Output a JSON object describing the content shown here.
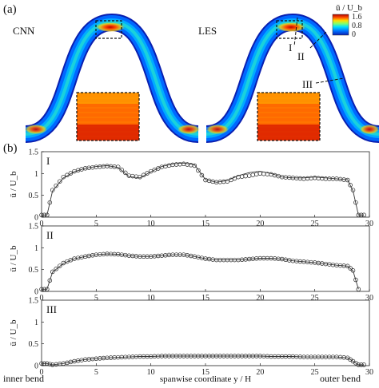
{
  "panel_a": {
    "label": "(a)",
    "left_label": "CNN",
    "right_label": "LES",
    "colorbar": {
      "title": "ū / U_b",
      "ticks": [
        "1.6",
        "0.8",
        "0"
      ],
      "colors": [
        "#0000b4",
        "#0060ff",
        "#00d0ff",
        "#40ff90",
        "#e0ff20",
        "#ffa000",
        "#ff3000",
        "#b00000"
      ]
    },
    "markers": [
      "I",
      "II",
      "III"
    ]
  },
  "panel_b": {
    "label": "(b)",
    "bottom_left": "inner bend",
    "bottom_right": "outer bend"
  },
  "chart_data": [
    {
      "type": "line",
      "panel": "I",
      "xlabel": "spanwise coordinate y / H",
      "ylabel": "ū / U_b",
      "xlim": [
        0,
        30
      ],
      "ylim": [
        0,
        1.5
      ],
      "xticks": [
        "0",
        "5",
        "10",
        "15",
        "20",
        "25",
        "30"
      ],
      "yticks": [
        "0",
        "0.5",
        "1",
        "1.5"
      ],
      "series": [
        {
          "marker": "circle",
          "x": [
            0,
            0.5,
            1,
            2,
            3,
            4,
            5,
            6,
            7,
            8,
            9,
            10,
            11,
            12,
            13,
            14,
            15,
            16,
            17,
            18,
            19,
            20,
            21,
            22,
            23,
            24,
            25,
            26,
            27,
            28,
            28.5,
            29,
            29.5
          ],
          "y": [
            0.05,
            0.05,
            0.62,
            0.92,
            1.05,
            1.12,
            1.15,
            1.17,
            1.15,
            0.95,
            0.92,
            1.05,
            1.15,
            1.2,
            1.22,
            1.18,
            0.85,
            0.8,
            0.82,
            0.92,
            0.95,
            1.0,
            0.98,
            0.92,
            0.9,
            0.88,
            0.9,
            0.88,
            0.88,
            0.85,
            0.62,
            0.05,
            0.05
          ]
        },
        {
          "marker": "none",
          "x": [
            0,
            0.5,
            1,
            2,
            3,
            4,
            5,
            6,
            7,
            8,
            9,
            10,
            11,
            12,
            13,
            14,
            15,
            16,
            17,
            18,
            19,
            20,
            21,
            22,
            23,
            24,
            25,
            26,
            27,
            28,
            28.5,
            29,
            29.5
          ],
          "y": [
            0.05,
            0.05,
            0.6,
            0.9,
            1.04,
            1.12,
            1.16,
            1.18,
            1.14,
            0.93,
            0.9,
            1.04,
            1.16,
            1.22,
            1.24,
            1.2,
            0.86,
            0.8,
            0.84,
            0.95,
            1.02,
            1.05,
            1.0,
            0.92,
            0.9,
            0.9,
            0.92,
            0.9,
            0.88,
            0.86,
            0.6,
            0.05,
            0.05
          ]
        }
      ]
    },
    {
      "type": "line",
      "panel": "II",
      "xlabel": "spanwise coordinate y / H",
      "ylabel": "ū / U_b",
      "xlim": [
        0,
        30
      ],
      "ylim": [
        0,
        1.5
      ],
      "xticks": [
        "0",
        "5",
        "10",
        "15",
        "20",
        "25",
        "30"
      ],
      "yticks": [
        "0",
        "0.5",
        "1",
        "1.5"
      ],
      "series": [
        {
          "marker": "circle",
          "x": [
            0,
            0.5,
            1,
            2,
            3,
            4,
            5,
            6,
            7,
            8,
            9,
            10,
            11,
            12,
            13,
            14,
            15,
            16,
            17,
            18,
            19,
            20,
            21,
            22,
            23,
            24,
            25,
            26,
            27,
            28,
            28.5,
            29
          ],
          "y": [
            0.05,
            0.05,
            0.45,
            0.65,
            0.75,
            0.8,
            0.84,
            0.86,
            0.85,
            0.82,
            0.8,
            0.8,
            0.82,
            0.84,
            0.84,
            0.8,
            0.75,
            0.72,
            0.72,
            0.72,
            0.74,
            0.76,
            0.76,
            0.74,
            0.7,
            0.68,
            0.66,
            0.63,
            0.6,
            0.58,
            0.48,
            0.05
          ]
        },
        {
          "marker": "none",
          "x": [
            0,
            0.5,
            1,
            2,
            3,
            4,
            5,
            6,
            7,
            8,
            9,
            10,
            11,
            12,
            13,
            14,
            15,
            16,
            17,
            18,
            19,
            20,
            21,
            22,
            23,
            24,
            25,
            26,
            27,
            28,
            28.5,
            29
          ],
          "y": [
            0.05,
            0.05,
            0.44,
            0.64,
            0.75,
            0.8,
            0.84,
            0.86,
            0.85,
            0.82,
            0.8,
            0.8,
            0.82,
            0.84,
            0.84,
            0.8,
            0.75,
            0.72,
            0.72,
            0.72,
            0.74,
            0.76,
            0.76,
            0.74,
            0.7,
            0.68,
            0.66,
            0.63,
            0.6,
            0.58,
            0.47,
            0.05
          ]
        }
      ]
    },
    {
      "type": "line",
      "panel": "III",
      "xlabel": "spanwise coordinate y / H",
      "ylabel": "ū / U_b",
      "xlim": [
        0,
        30
      ],
      "ylim": [
        0,
        1.5
      ],
      "xticks": [
        "0",
        "5",
        "10",
        "15",
        "20",
        "25",
        "30"
      ],
      "yticks": [
        "0",
        "0.5",
        "1",
        "1.5"
      ],
      "series": [
        {
          "marker": "circle",
          "x": [
            0,
            0.5,
            1,
            2,
            3,
            4,
            5,
            6,
            7,
            8,
            9,
            10,
            11,
            12,
            13,
            14,
            15,
            16,
            17,
            18,
            19,
            20,
            21,
            22,
            23,
            24,
            25,
            26,
            27,
            28,
            28.5,
            29,
            29.5
          ],
          "y": [
            0.05,
            0.05,
            0.02,
            0.05,
            0.1,
            0.14,
            0.16,
            0.18,
            0.19,
            0.2,
            0.21,
            0.21,
            0.22,
            0.22,
            0.22,
            0.22,
            0.22,
            0.22,
            0.22,
            0.22,
            0.22,
            0.22,
            0.21,
            0.21,
            0.21,
            0.2,
            0.2,
            0.2,
            0.2,
            0.18,
            0.1,
            0.02,
            0.02
          ]
        },
        {
          "marker": "none",
          "x": [
            0,
            0.5,
            1,
            2,
            3,
            4,
            5,
            6,
            7,
            8,
            9,
            10,
            11,
            12,
            13,
            14,
            15,
            16,
            17,
            18,
            19,
            20,
            21,
            22,
            23,
            24,
            25,
            26,
            27,
            28,
            28.5,
            29,
            29.5
          ],
          "y": [
            0.05,
            0.05,
            0.02,
            0.05,
            0.1,
            0.14,
            0.16,
            0.18,
            0.19,
            0.2,
            0.21,
            0.21,
            0.22,
            0.22,
            0.22,
            0.22,
            0.22,
            0.22,
            0.22,
            0.22,
            0.22,
            0.22,
            0.21,
            0.21,
            0.21,
            0.2,
            0.2,
            0.2,
            0.2,
            0.18,
            0.1,
            0.02,
            0.02
          ]
        }
      ]
    }
  ]
}
